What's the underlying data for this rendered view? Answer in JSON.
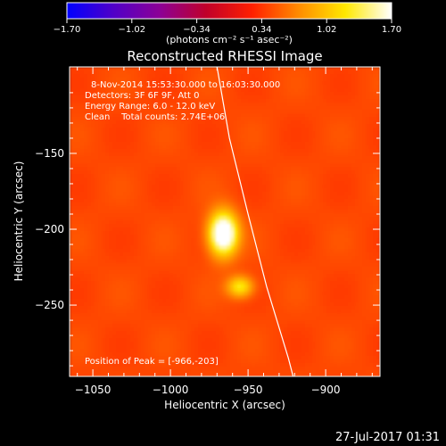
{
  "chart_data": {
    "type": "heatmap",
    "title": "Reconstructed RHESSI Image",
    "xlabel": "Heliocentric X (arcsec)",
    "ylabel": "Heliocentric Y (arcsec)",
    "xlim": [
      -1065,
      -865
    ],
    "ylim": [
      -297,
      -93
    ],
    "xticks": [
      -1050,
      -1000,
      -950,
      -900
    ],
    "yticks": [
      -150,
      -200,
      -250
    ],
    "colorbar": {
      "min": -1.7,
      "max": 1.7,
      "ticks": [
        "-1.70",
        "-1.02",
        "-0.34",
        "0.34",
        "1.02",
        "1.70"
      ],
      "label": "(photons cm⁻² s⁻¹ asec⁻²)",
      "colormap": [
        "#0000ff",
        "#5000c8",
        "#8c0096",
        "#c0002a",
        "#ff2000",
        "#ff8c00",
        "#ffe800",
        "#ffffff"
      ]
    },
    "annotations": [
      "8-Nov-2014 15:53:30.000 to 16:03:30.000",
      "Detectors: 3F 6F 9F, Att 0",
      "Energy Range: 6.0 - 12.0 keV",
      "Clean    Total counts: 2.74E+06",
      "Position of Peak = [-966,-203]"
    ],
    "peak": {
      "x": -966,
      "y": -203
    },
    "sources": [
      {
        "x": -966,
        "y": -203,
        "sx": 6.5,
        "sy": 10,
        "amp": 1.7
      },
      {
        "x": -955,
        "y": -238,
        "sx": 6,
        "sy": 5,
        "amp": 0.85
      }
    ],
    "background": 0.42,
    "limb": [
      {
        "x": -970,
        "y": -93
      },
      {
        "x": -962,
        "y": -140
      },
      {
        "x": -950,
        "y": -190
      },
      {
        "x": -938,
        "y": -238
      },
      {
        "x": -924,
        "y": -285
      },
      {
        "x": -921,
        "y": -297
      }
    ]
  },
  "footer": {
    "date": "27-Jul-2017 01:31"
  }
}
